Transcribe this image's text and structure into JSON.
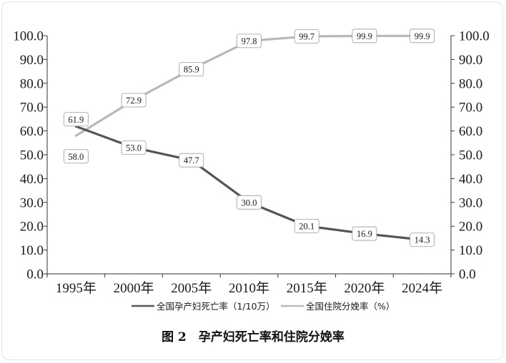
{
  "chart_data": {
    "type": "line",
    "categories": [
      "1995年",
      "2000年",
      "2005年",
      "2010年",
      "2015年",
      "2020年",
      "2024年"
    ],
    "series": [
      {
        "name": "全国孕产妇死亡率（1/10万）",
        "axis": "left",
        "color": "#555555",
        "values": [
          61.9,
          53.0,
          47.7,
          30.0,
          20.1,
          16.9,
          14.3
        ]
      },
      {
        "name": "全国住院分娩率（%）",
        "axis": "right",
        "color": "#b8b8b8",
        "values": [
          58.0,
          72.9,
          85.9,
          97.8,
          99.7,
          99.9,
          99.9
        ]
      }
    ],
    "ylim": [
      0,
      100
    ],
    "yticks": [
      "0.0",
      "10.0",
      "20.0",
      "30.0",
      "40.0",
      "50.0",
      "60.0",
      "70.0",
      "80.0",
      "90.0",
      "100.0"
    ],
    "y2ticks": [
      "0.0",
      "10.0",
      "20.0",
      "30.0",
      "40.0",
      "50.0",
      "60.0",
      "70.0",
      "80.0",
      "90.0",
      "100.0"
    ],
    "title": "图 2　孕产妇死亡率和住院分娩率",
    "legend_position": "bottom"
  }
}
